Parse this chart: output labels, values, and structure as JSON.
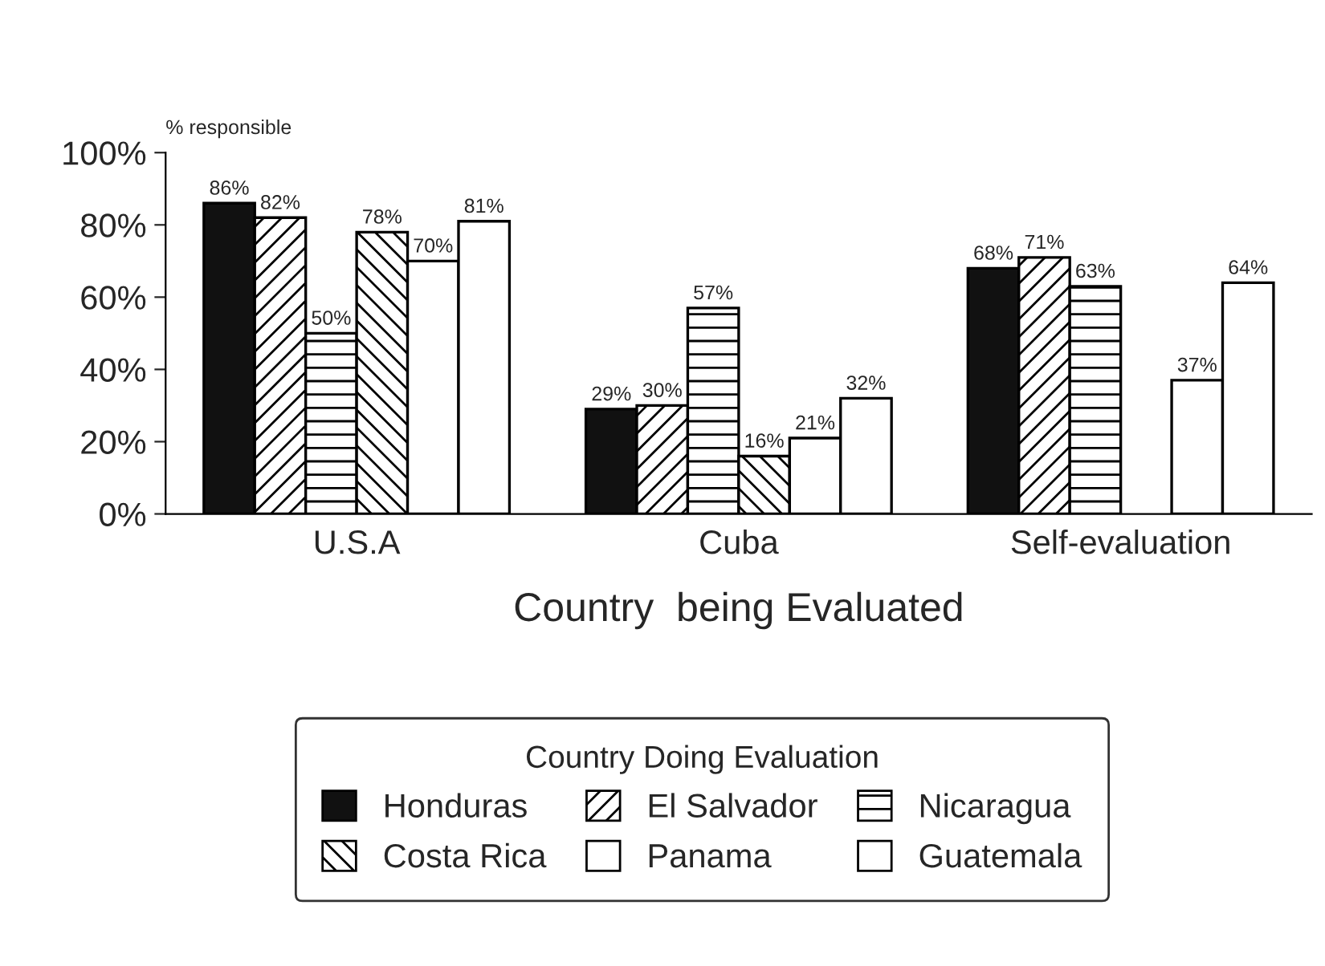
{
  "chart_data": {
    "type": "bar",
    "ylabel": "% responsible",
    "xlabel": "Country  being Evaluated",
    "legend_title": "Country Doing Evaluation",
    "legend": "bottom",
    "grid": false,
    "categories": [
      "U.S.A",
      "Cuba",
      "Self-evaluation"
    ],
    "ylim": [
      0,
      100
    ],
    "yticks": [
      {
        "value": 0,
        "label": "0%"
      },
      {
        "value": 20,
        "label": "20%"
      },
      {
        "value": 40,
        "label": "40%"
      },
      {
        "value": 60,
        "label": "60%"
      },
      {
        "value": 80,
        "label": "80%"
      },
      {
        "value": 100,
        "label": "100%"
      }
    ],
    "series": [
      {
        "name": "Honduras",
        "color": "#111111",
        "values": [
          86,
          29,
          68
        ],
        "value_labels": [
          "86%",
          "29%",
          "68%"
        ]
      },
      {
        "name": "El Salvador",
        "color": "#000000",
        "values": [
          82,
          30,
          71
        ],
        "value_labels": [
          "82%",
          "30%",
          "71%"
        ]
      },
      {
        "name": "Nicaragua",
        "color": "#000000",
        "values": [
          50,
          57,
          63
        ],
        "value_labels": [
          "50%",
          "57%",
          "63%"
        ]
      },
      {
        "name": "Costa Rica",
        "color": "#000000",
        "values": [
          78,
          16,
          null
        ],
        "value_labels": [
          "78%",
          "16%",
          null
        ]
      },
      {
        "name": "Panama",
        "color": "#ffffff",
        "values": [
          70,
          21,
          37
        ],
        "value_labels": [
          "70%",
          "21%",
          "37%"
        ]
      },
      {
        "name": "Guatemala",
        "color": "#ffffff",
        "values": [
          81,
          32,
          64
        ],
        "value_labels": [
          "81%",
          "32%",
          "64%"
        ]
      }
    ]
  }
}
